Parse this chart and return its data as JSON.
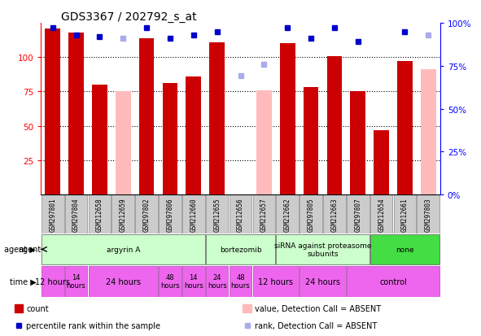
{
  "title": "GDS3367 / 202792_s_at",
  "samples": [
    "GSM297801",
    "GSM297804",
    "GSM212658",
    "GSM212659",
    "GSM297802",
    "GSM297806",
    "GSM212660",
    "GSM212655",
    "GSM212656",
    "GSM212657",
    "GSM212662",
    "GSM297805",
    "GSM212663",
    "GSM297807",
    "GSM212654",
    "GSM212661",
    "GSM297803"
  ],
  "count_values": [
    121,
    118,
    80,
    null,
    114,
    81,
    86,
    111,
    null,
    null,
    110,
    78,
    101,
    75,
    47,
    97,
    null
  ],
  "count_absent": [
    null,
    null,
    null,
    75,
    null,
    null,
    null,
    null,
    null,
    76,
    null,
    null,
    null,
    null,
    null,
    null,
    91
  ],
  "rank_values": [
    97,
    93,
    92,
    null,
    97,
    91,
    93,
    95,
    null,
    null,
    97,
    91,
    97,
    89,
    null,
    95,
    null
  ],
  "rank_absent": [
    null,
    null,
    null,
    91,
    null,
    null,
    null,
    null,
    69,
    76,
    null,
    null,
    null,
    null,
    null,
    null,
    93
  ],
  "ylim_left": [
    0,
    125
  ],
  "ylim_right": [
    0,
    100
  ],
  "yticks_left": [
    25,
    50,
    75,
    100
  ],
  "ytick_labels_right": [
    "0%",
    "25%",
    "50%",
    "75%",
    "100%"
  ],
  "ytick_positions_right": [
    0,
    25,
    50,
    75,
    100
  ],
  "agent_groups": [
    {
      "label": "argyrin A",
      "start": 0,
      "end": 7,
      "color": "#ccffcc"
    },
    {
      "label": "bortezomib",
      "start": 7,
      "end": 10,
      "color": "#ccffcc"
    },
    {
      "label": "siRNA against proteasome\nsubunits",
      "start": 10,
      "end": 14,
      "color": "#ccffcc"
    },
    {
      "label": "none",
      "start": 14,
      "end": 17,
      "color": "#44dd44"
    }
  ],
  "time_groups": [
    {
      "label": "12 hours",
      "start": 0,
      "end": 1,
      "size": "large"
    },
    {
      "label": "14\nhours",
      "start": 1,
      "end": 2,
      "size": "small"
    },
    {
      "label": "24 hours",
      "start": 2,
      "end": 5,
      "size": "large"
    },
    {
      "label": "48\nhours",
      "start": 5,
      "end": 6,
      "size": "small"
    },
    {
      "label": "14\nhours",
      "start": 6,
      "end": 7,
      "size": "small"
    },
    {
      "label": "24\nhours",
      "start": 7,
      "end": 8,
      "size": "small"
    },
    {
      "label": "48\nhours",
      "start": 8,
      "end": 9,
      "size": "small"
    },
    {
      "label": "12 hours",
      "start": 9,
      "end": 11,
      "size": "large"
    },
    {
      "label": "24 hours",
      "start": 11,
      "end": 13,
      "size": "large"
    },
    {
      "label": "control",
      "start": 13,
      "end": 17,
      "size": "large"
    }
  ],
  "bar_color_red": "#cc0000",
  "bar_color_pink": "#ffbbbb",
  "dot_color_blue": "#0000cc",
  "dot_color_lightblue": "#aaaaee",
  "label_row_color": "#cccccc",
  "agent_color_light": "#ccffcc",
  "agent_color_strong": "#44dd44",
  "time_color": "#ee66ee"
}
